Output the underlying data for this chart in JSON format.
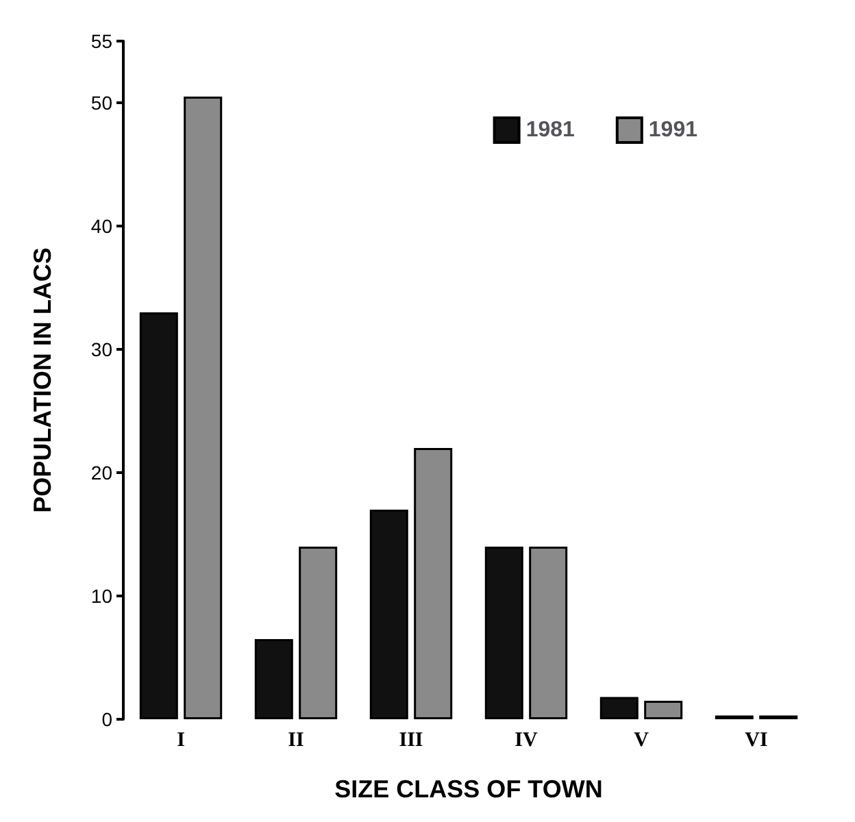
{
  "chart_data": {
    "type": "bar",
    "xlabel": "SIZE CLASS OF TOWN",
    "ylabel": "POPULATION IN LACS",
    "categories": [
      "I",
      "II",
      "III",
      "IV",
      "V",
      "VI"
    ],
    "series": [
      {
        "name": "1981",
        "color": "#111111",
        "values": [
          33,
          6.5,
          17,
          14,
          1.8,
          0.3
        ]
      },
      {
        "name": "1991",
        "color": "#8a8a8a",
        "values": [
          50.5,
          14,
          22,
          14,
          1.5,
          0.3
        ]
      }
    ],
    "ylim": [
      0,
      55
    ],
    "yticks": [
      0,
      10,
      20,
      30,
      40,
      50,
      55
    ],
    "grid": false,
    "legend": "top right"
  }
}
